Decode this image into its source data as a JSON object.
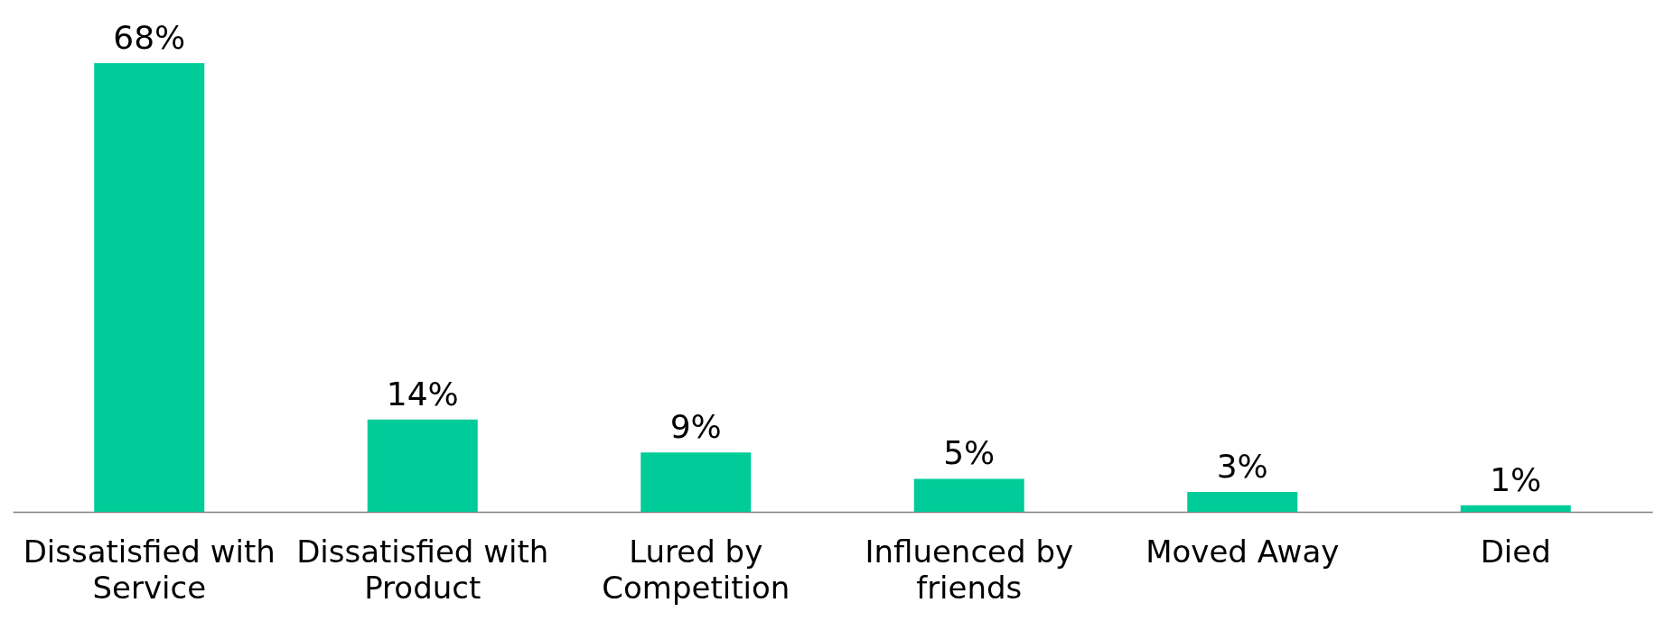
{
  "chart_data": {
    "type": "bar",
    "categories": [
      "Dissatisfied with\nService",
      "Dissatisfied with\nProduct",
      "Lured by\nCompetition",
      "Influenced by\nfriends",
      "Moved Away",
      "Died"
    ],
    "values": [
      68,
      14,
      9,
      5,
      3,
      1
    ],
    "color": "#00cc99",
    "data_labels": true,
    "value_labels": [
      "68%",
      "14%",
      "9%",
      "5%",
      "3%",
      "1%"
    ]
  }
}
